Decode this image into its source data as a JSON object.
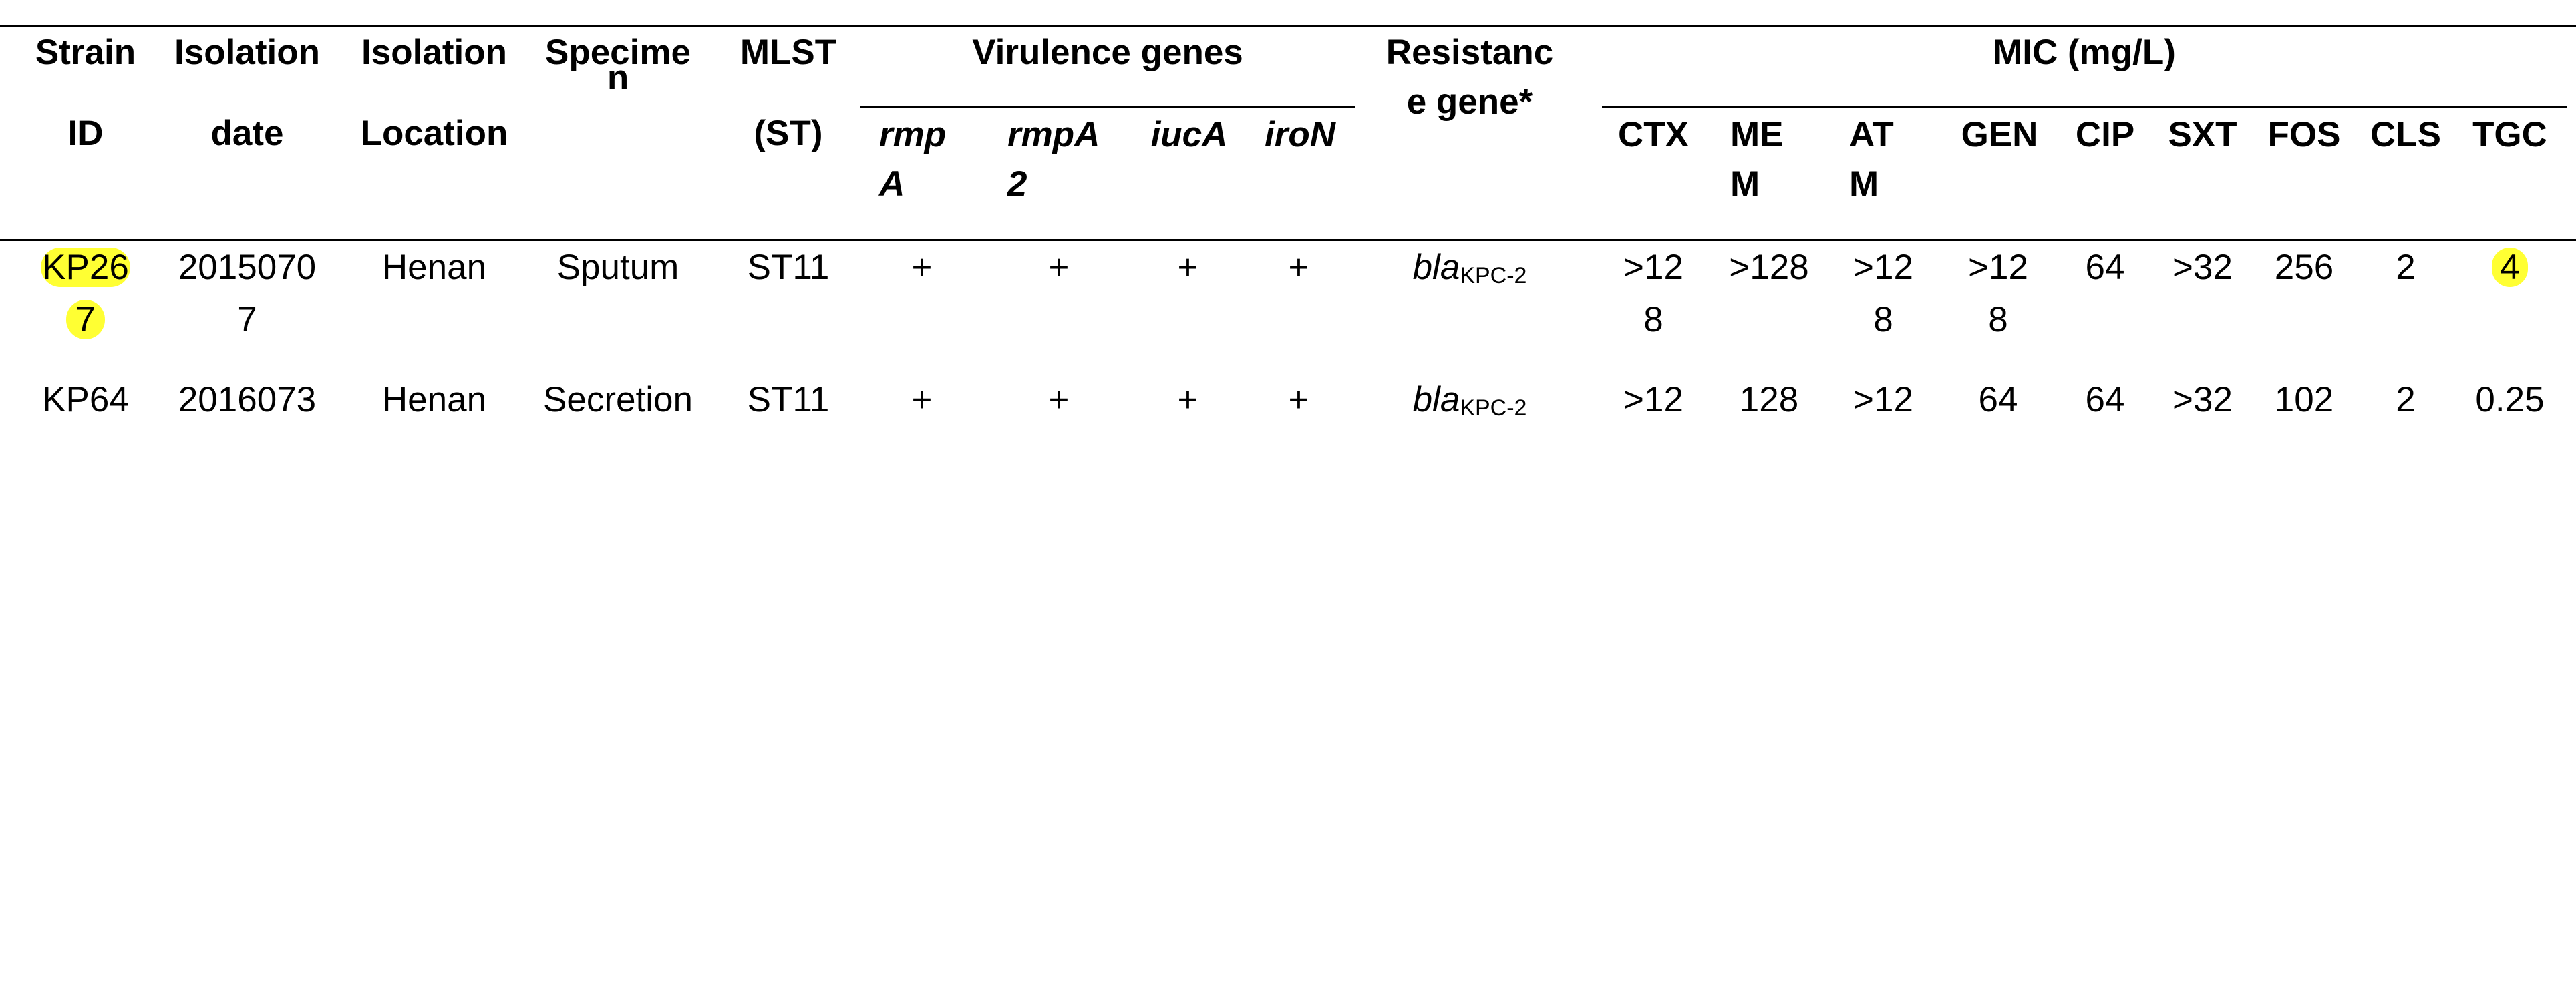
{
  "header": {
    "strain": [
      "Strain",
      "ID"
    ],
    "isolation_date": [
      "Isolation",
      "date"
    ],
    "isolation_location": [
      "Isolation",
      "Location"
    ],
    "specimen": [
      "Specime",
      "n"
    ],
    "mlst": [
      "MLST",
      "(ST)"
    ],
    "virulence_group": "Virulence genes",
    "virulence": [
      [
        "rmp",
        "A"
      ],
      [
        "rmpA",
        "2"
      ],
      [
        "iucA"
      ],
      [
        "iroN"
      ]
    ],
    "resistance": [
      "Resistanc",
      "e gene*"
    ],
    "mic_group": "MIC (mg/L)",
    "mic": [
      [
        "CTX"
      ],
      [
        "ME",
        "M"
      ],
      [
        "AT",
        "M"
      ],
      [
        "GEN"
      ],
      [
        "CIP"
      ],
      [
        "SXT"
      ],
      [
        "FOS"
      ],
      [
        "CLS"
      ],
      [
        "TGC"
      ]
    ]
  },
  "rows": [
    {
      "strain": [
        "KP26",
        "7"
      ],
      "date": [
        "2015070",
        "7"
      ],
      "location": "Henan",
      "specimen": "Sputum",
      "mlst": "ST11",
      "virulence": [
        "+",
        "+",
        "+",
        "+"
      ],
      "resistance": {
        "gene": "bla",
        "variant": "KPC-2"
      },
      "mic": [
        [
          ">12",
          "8"
        ],
        [
          ">128"
        ],
        [
          ">12",
          "8"
        ],
        [
          ">12",
          "8"
        ],
        [
          "64"
        ],
        [
          ">32"
        ],
        [
          "256"
        ],
        [
          "2"
        ],
        [
          "4"
        ]
      ]
    },
    {
      "strain": [
        "KP64"
      ],
      "date": [
        "2016073"
      ],
      "location": "Henan",
      "specimen": "Secretion",
      "mlst": "ST11",
      "virulence": [
        "+",
        "+",
        "+",
        "+"
      ],
      "resistance": {
        "gene": "bla",
        "variant": "KPC-2"
      },
      "mic": [
        [
          ">12"
        ],
        [
          "128"
        ],
        [
          ">12"
        ],
        [
          "64"
        ],
        [
          "64"
        ],
        [
          ">32"
        ],
        [
          "102"
        ],
        [
          "2"
        ],
        [
          "0.25"
        ]
      ]
    }
  ],
  "highlight_color": "#ffff33"
}
